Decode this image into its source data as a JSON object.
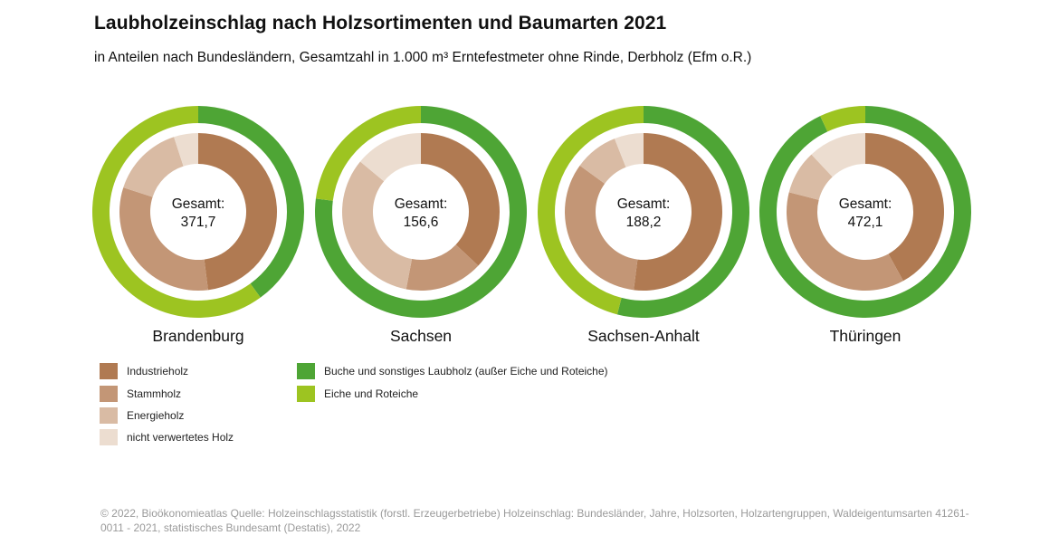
{
  "title": "Laubholzeinschlag nach Holzsortimenten und Baumarten 2021",
  "subtitle": "in Anteilen nach Bundesländern, Gesamtzahl in 1.000 m³ Erntefestmeter ohne Rinde, Derbholz (Efm o.R.)",
  "colors": {
    "industrieholz": "#b07a52",
    "stammholz": "#c39676",
    "energieholz": "#d9bba4",
    "nicht_verwertet": "#ecddd0",
    "buche": "#4ea535",
    "eiche": "#9dc421"
  },
  "legend": {
    "left": [
      {
        "label": "Industrieholz",
        "color_key": "industrieholz"
      },
      {
        "label": "Stammholz",
        "color_key": "stammholz"
      },
      {
        "label": "Energieholz",
        "color_key": "energieholz"
      },
      {
        "label": "nicht verwertetes Holz",
        "color_key": "nicht_verwertet"
      }
    ],
    "right": [
      {
        "label": "Buche und sonstiges Laubholz (außer Eiche und Roteiche)",
        "color_key": "buche"
      },
      {
        "label": "Eiche und Roteiche",
        "color_key": "eiche"
      }
    ]
  },
  "chart_data": [
    {
      "type": "pie",
      "name": "Brandenburg",
      "center_label": "Gesamt:",
      "total": "371,7",
      "inner": [
        {
          "name": "Industrieholz",
          "share": 0.48,
          "color_key": "industrieholz"
        },
        {
          "name": "Stammholz",
          "share": 0.32,
          "color_key": "stammholz"
        },
        {
          "name": "Energieholz",
          "share": 0.15,
          "color_key": "energieholz"
        },
        {
          "name": "nicht verwertetes Holz",
          "share": 0.05,
          "color_key": "nicht_verwertet"
        }
      ],
      "outer": [
        {
          "name": "Buche und sonstiges Laubholz (außer Eiche und Roteiche)",
          "share": 0.4,
          "color_key": "buche"
        },
        {
          "name": "Eiche und Roteiche",
          "share": 0.6,
          "color_key": "eiche"
        }
      ]
    },
    {
      "type": "pie",
      "name": "Sachsen",
      "center_label": "Gesamt:",
      "total": "156,6",
      "inner": [
        {
          "name": "Industrieholz",
          "share": 0.37,
          "color_key": "industrieholz"
        },
        {
          "name": "Stammholz",
          "share": 0.16,
          "color_key": "stammholz"
        },
        {
          "name": "Energieholz",
          "share": 0.33,
          "color_key": "energieholz"
        },
        {
          "name": "nicht verwertetes Holz",
          "share": 0.14,
          "color_key": "nicht_verwertet"
        }
      ],
      "outer": [
        {
          "name": "Buche und sonstiges Laubholz (außer Eiche und Roteiche)",
          "share": 0.77,
          "color_key": "buche"
        },
        {
          "name": "Eiche und Roteiche",
          "share": 0.23,
          "color_key": "eiche"
        }
      ]
    },
    {
      "type": "pie",
      "name": "Sachsen-Anhalt",
      "center_label": "Gesamt:",
      "total": "188,2",
      "inner": [
        {
          "name": "Industrieholz",
          "share": 0.52,
          "color_key": "industrieholz"
        },
        {
          "name": "Stammholz",
          "share": 0.33,
          "color_key": "stammholz"
        },
        {
          "name": "Energieholz",
          "share": 0.09,
          "color_key": "energieholz"
        },
        {
          "name": "nicht verwertetes Holz",
          "share": 0.06,
          "color_key": "nicht_verwertet"
        }
      ],
      "outer": [
        {
          "name": "Buche und sonstiges Laubholz (außer Eiche und Roteiche)",
          "share": 0.54,
          "color_key": "buche"
        },
        {
          "name": "Eiche und Roteiche",
          "share": 0.46,
          "color_key": "eiche"
        }
      ]
    },
    {
      "type": "pie",
      "name": "Thüringen",
      "center_label": "Gesamt:",
      "total": "472,1",
      "inner": [
        {
          "name": "Industrieholz",
          "share": 0.42,
          "color_key": "industrieholz"
        },
        {
          "name": "Stammholz",
          "share": 0.37,
          "color_key": "stammholz"
        },
        {
          "name": "Energieholz",
          "share": 0.09,
          "color_key": "energieholz"
        },
        {
          "name": "nicht verwertetes Holz",
          "share": 0.12,
          "color_key": "nicht_verwertet"
        }
      ],
      "outer": [
        {
          "name": "Buche und sonstiges Laubholz (außer Eiche und Roteiche)",
          "share": 0.93,
          "color_key": "buche"
        },
        {
          "name": "Eiche und Roteiche",
          "share": 0.07,
          "color_key": "eiche"
        }
      ]
    }
  ],
  "footer": "© 2022, Bioökonomieatlas Quelle: Holzeinschlagsstatistik (forstl. Erzeugerbetriebe) Holzeinschlag: Bundesländer, Jahre, Holzsorten, Holzartengruppen, Waldeigentumsarten 41261-0011 - 2021, statistisches Bundesamt (Destatis), 2022"
}
